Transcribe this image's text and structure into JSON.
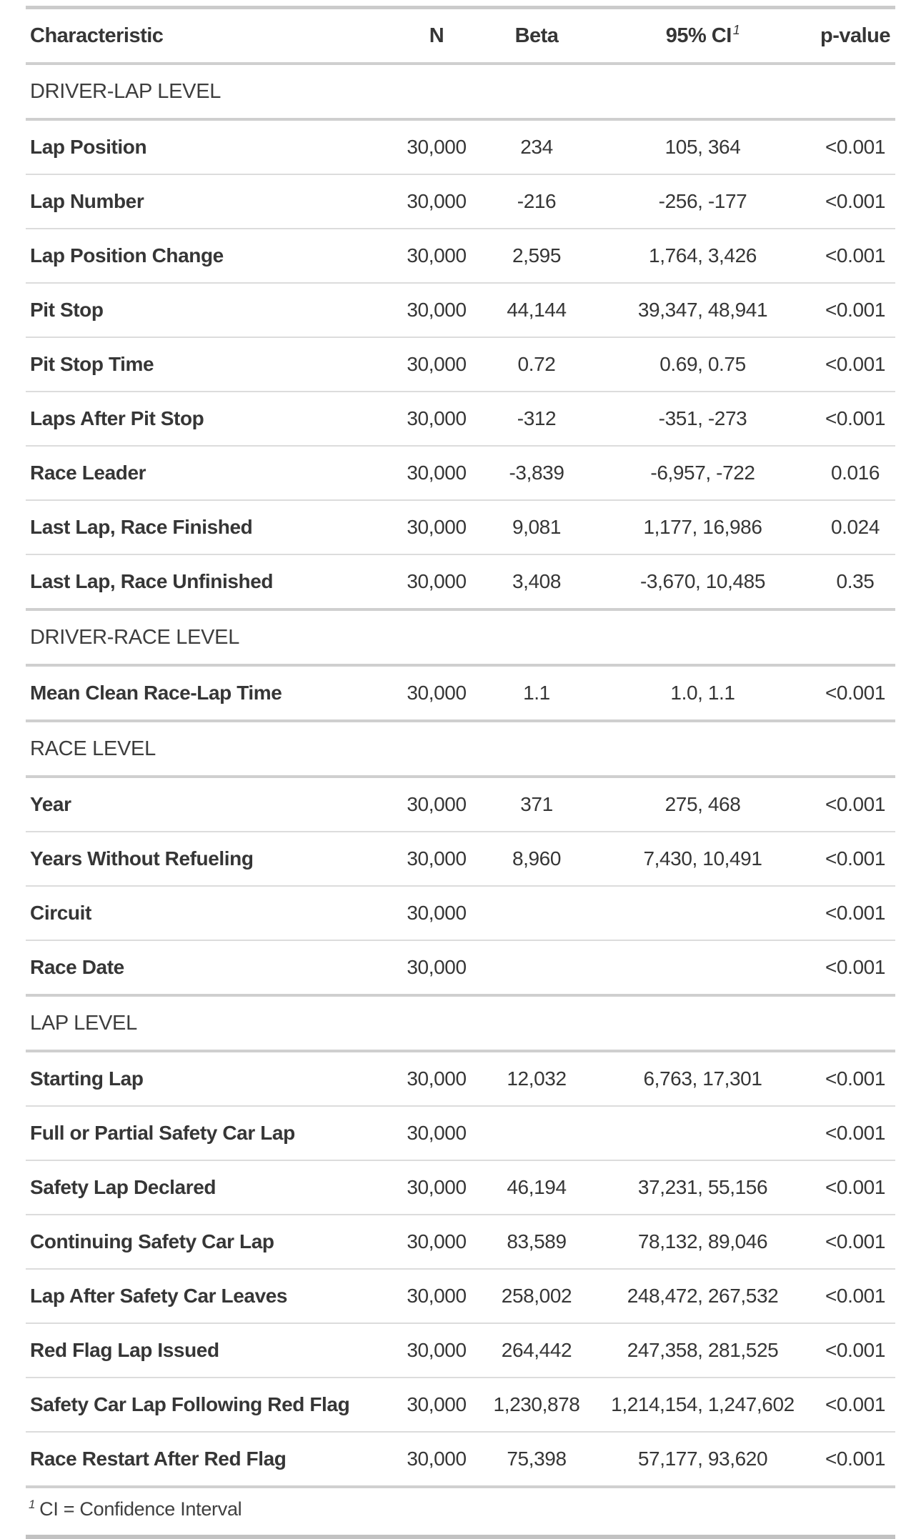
{
  "colors": {
    "text": "#363636",
    "border_thick": "#cbcbcb",
    "border_thin": "#dcdcdc",
    "background": "#ffffff"
  },
  "chart_data": {
    "type": "table",
    "columns": [
      {
        "key": "characteristic",
        "label": "Characteristic"
      },
      {
        "key": "n",
        "label": "N"
      },
      {
        "key": "beta",
        "label": "Beta"
      },
      {
        "key": "ci",
        "label": "95% CI",
        "footnote_mark": "1"
      },
      {
        "key": "p",
        "label": "p-value"
      }
    ],
    "sections": [
      {
        "label": "DRIVER-LAP LEVEL",
        "rows": [
          {
            "label": "Lap Position",
            "n": "30,000",
            "beta": "234",
            "ci": "105, 364",
            "p": "<0.001"
          },
          {
            "label": "Lap Number",
            "n": "30,000",
            "beta": "-216",
            "ci": "-256, -177",
            "p": "<0.001"
          },
          {
            "label": "Lap Position Change",
            "n": "30,000",
            "beta": "2,595",
            "ci": "1,764, 3,426",
            "p": "<0.001"
          },
          {
            "label": "Pit Stop",
            "n": "30,000",
            "beta": "44,144",
            "ci": "39,347, 48,941",
            "p": "<0.001"
          },
          {
            "label": "Pit Stop Time",
            "n": "30,000",
            "beta": "0.72",
            "ci": "0.69, 0.75",
            "p": "<0.001"
          },
          {
            "label": "Laps After Pit Stop",
            "n": "30,000",
            "beta": "-312",
            "ci": "-351, -273",
            "p": "<0.001"
          },
          {
            "label": "Race Leader",
            "n": "30,000",
            "beta": "-3,839",
            "ci": "-6,957, -722",
            "p": "0.016"
          },
          {
            "label": "Last Lap, Race Finished",
            "n": "30,000",
            "beta": "9,081",
            "ci": "1,177, 16,986",
            "p": "0.024"
          },
          {
            "label": "Last Lap, Race Unfinished",
            "n": "30,000",
            "beta": "3,408",
            "ci": "-3,670, 10,485",
            "p": "0.35"
          }
        ]
      },
      {
        "label": "DRIVER-RACE LEVEL",
        "rows": [
          {
            "label": "Mean Clean Race-Lap Time",
            "n": "30,000",
            "beta": "1.1",
            "ci": "1.0, 1.1",
            "p": "<0.001"
          }
        ]
      },
      {
        "label": "RACE LEVEL",
        "rows": [
          {
            "label": "Year",
            "n": "30,000",
            "beta": "371",
            "ci": "275, 468",
            "p": "<0.001"
          },
          {
            "label": "Years Without Refueling",
            "n": "30,000",
            "beta": "8,960",
            "ci": "7,430, 10,491",
            "p": "<0.001"
          },
          {
            "label": "Circuit",
            "n": "30,000",
            "beta": "",
            "ci": "",
            "p": "<0.001"
          },
          {
            "label": "Race Date",
            "n": "30,000",
            "beta": "",
            "ci": "",
            "p": "<0.001"
          }
        ]
      },
      {
        "label": "LAP LEVEL",
        "rows": [
          {
            "label": "Starting Lap",
            "n": "30,000",
            "beta": "12,032",
            "ci": "6,763, 17,301",
            "p": "<0.001"
          },
          {
            "label": "Full or Partial Safety Car Lap",
            "n": "30,000",
            "beta": "",
            "ci": "",
            "p": "<0.001"
          },
          {
            "label": "Safety Lap Declared",
            "n": "30,000",
            "beta": "46,194",
            "ci": "37,231, 55,156",
            "p": "<0.001"
          },
          {
            "label": "Continuing Safety Car Lap",
            "n": "30,000",
            "beta": "83,589",
            "ci": "78,132, 89,046",
            "p": "<0.001"
          },
          {
            "label": "Lap After Safety Car Leaves",
            "n": "30,000",
            "beta": "258,002",
            "ci": "248,472, 267,532",
            "p": "<0.001"
          },
          {
            "label": "Red Flag Lap Issued",
            "n": "30,000",
            "beta": "264,442",
            "ci": "247,358, 281,525",
            "p": "<0.001"
          },
          {
            "label": "Safety Car Lap Following Red Flag",
            "n": "30,000",
            "beta": "1,230,878",
            "ci": "1,214,154, 1,247,602",
            "p": "<0.001"
          },
          {
            "label": "Race Restart After Red Flag",
            "n": "30,000",
            "beta": "75,398",
            "ci": "57,177, 93,620",
            "p": "<0.001"
          }
        ]
      }
    ],
    "footnote": {
      "mark": "1",
      "text": "CI = Confidence Interval"
    }
  }
}
